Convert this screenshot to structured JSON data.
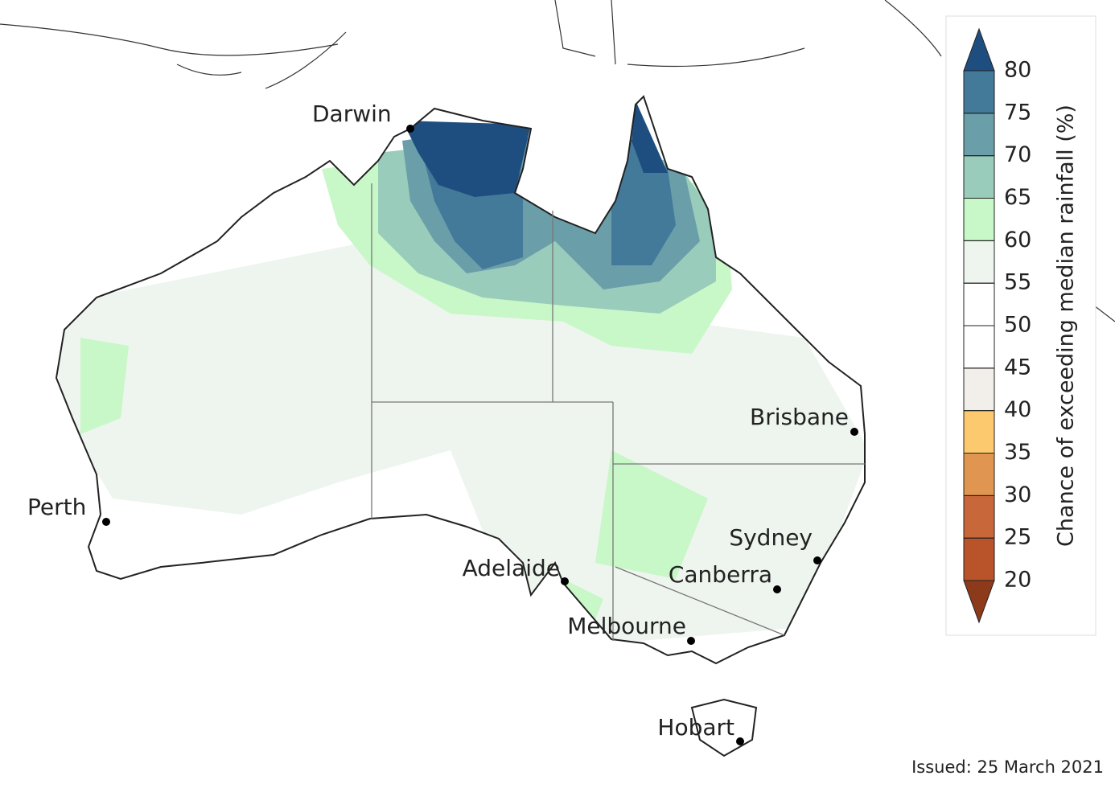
{
  "map": {
    "cities": [
      {
        "name": "Darwin"
      },
      {
        "name": "Brisbane"
      },
      {
        "name": "Perth"
      },
      {
        "name": "Sydney"
      },
      {
        "name": "Adelaide"
      },
      {
        "name": "Canberra"
      },
      {
        "name": "Melbourne"
      },
      {
        "name": "Hobart"
      }
    ]
  },
  "legend": {
    "label": "Chance of exceeding median rainfall (%)",
    "ticks": [
      20,
      25,
      30,
      35,
      40,
      45,
      50,
      55,
      60,
      65,
      70,
      75,
      80
    ],
    "colors": [
      "#8c3a1a",
      "#b8532a",
      "#c8683a",
      "#e09650",
      "#fdc96e",
      "#f2efea",
      "#ffffff",
      "#ffffff",
      "#eef5ee",
      "#c8f7c8",
      "#99ccbb",
      "#6a9faa",
      "#437a9a",
      "#1e4e80"
    ]
  },
  "issued": "Issued: 25 March 2021"
}
